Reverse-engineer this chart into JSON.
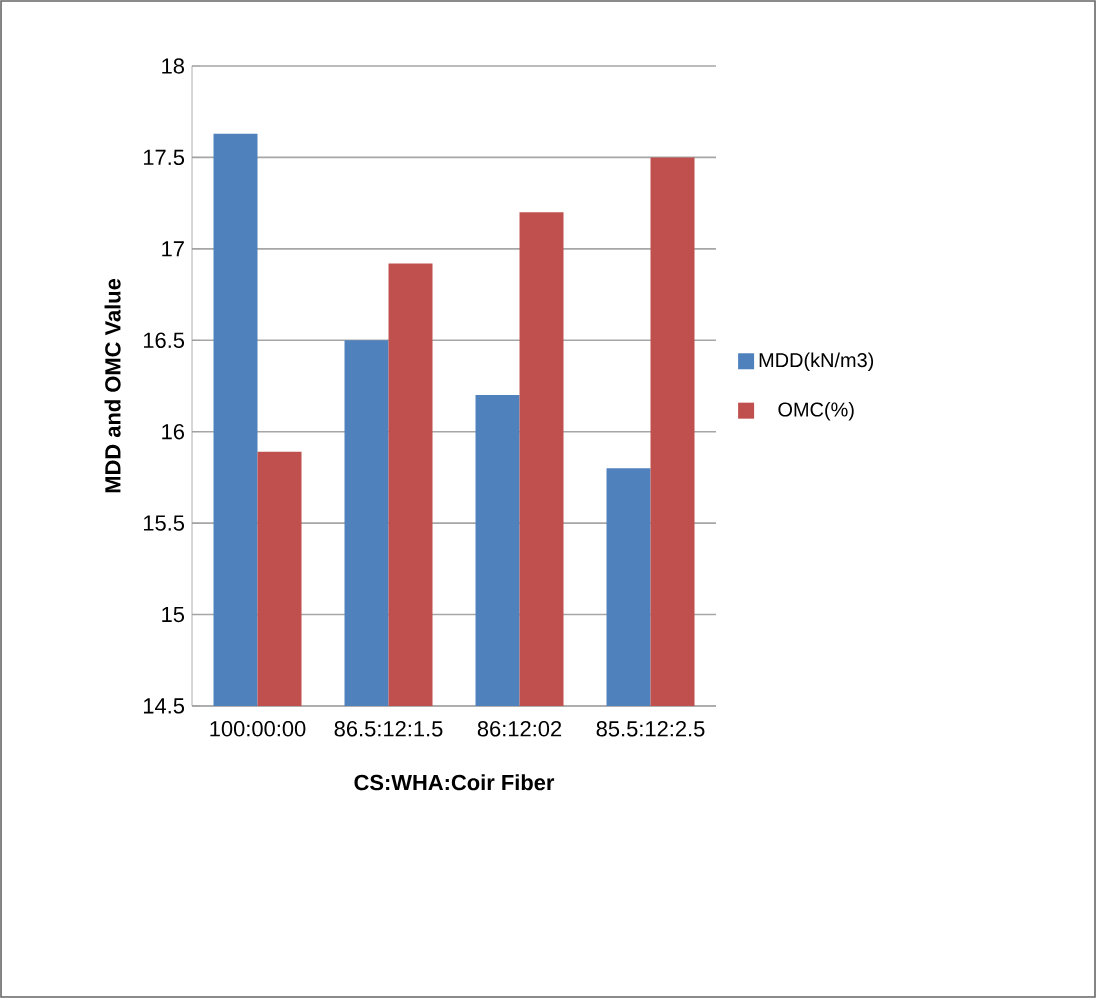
{
  "chart_data": {
    "type": "bar",
    "xlabel": "CS:WHA:Coir Fiber",
    "ylabel": "MDD and OMC Value",
    "categories": [
      "100:00:00",
      "86.5:12:1.5",
      "86:12:02",
      "85.5:12:2.5"
    ],
    "series": [
      {
        "name": "MDD(kN/m3)",
        "color": "#4f81bd",
        "values": [
          17.63,
          16.5,
          16.2,
          15.8
        ]
      },
      {
        "name": "OMC(%)",
        "color": "#c0504d",
        "values": [
          15.89,
          16.92,
          17.2,
          17.5
        ]
      }
    ],
    "ylim": [
      14.5,
      18
    ],
    "yticks": [
      14.5,
      15,
      15.5,
      16,
      16.5,
      17,
      17.5,
      18
    ],
    "grid": "y",
    "legend": "right"
  }
}
